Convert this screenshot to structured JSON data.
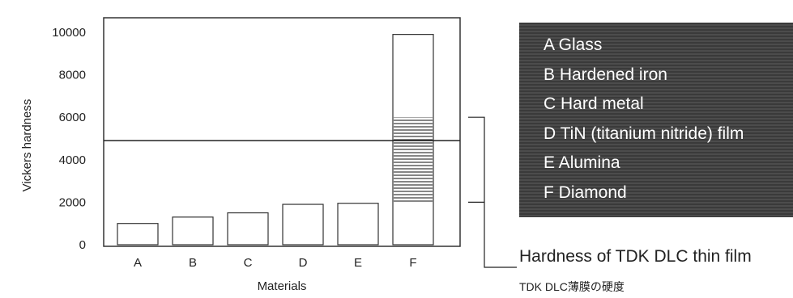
{
  "chart_data": {
    "type": "bar",
    "categories": [
      "A",
      "B",
      "C",
      "D",
      "E",
      "F"
    ],
    "values": [
      1000,
      1300,
      1500,
      1900,
      1950,
      9900
    ],
    "xlabel": "Materials",
    "ylabel": "Vickers hardness",
    "ylim": [
      0,
      10000
    ],
    "yticks": [
      0,
      2000,
      4000,
      6000,
      8000,
      10000
    ],
    "grid": false,
    "reference_line": 4900,
    "highlight_band": {
      "category": "F",
      "from": 2000,
      "to": 6000
    },
    "bracket_range": [
      2000,
      6000
    ]
  },
  "legend": {
    "items": [
      "A Glass",
      "B Hardened iron",
      "C Hard metal",
      "D TiN (titanium nitride) film",
      "E Alumina",
      "F Diamond"
    ]
  },
  "annotation": {
    "label": "Hardness of TDK DLC thin film",
    "label_jp": "TDK DLC薄膜の硬度"
  }
}
